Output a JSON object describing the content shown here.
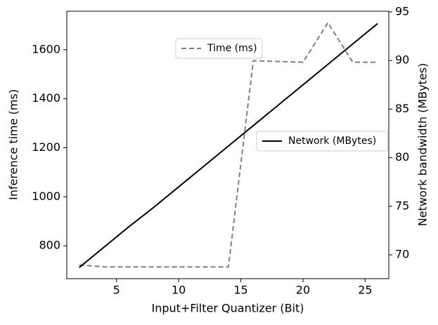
{
  "chart_data": {
    "type": "line",
    "x_label": "Input+Filter Quantizer (Bit)",
    "y_label": "Inference time (ms)",
    "y2_label": "Network bandwidth (MBytes)",
    "x": [
      2,
      4,
      6,
      8,
      10,
      12,
      14,
      16,
      18,
      20,
      22,
      24,
      26
    ],
    "series": [
      {
        "name": "Time (ms)",
        "color": "#808080",
        "dash": "dashed",
        "axis": "y",
        "values": [
          722,
          714,
          714,
          714,
          714,
          714,
          714,
          1555,
          1552,
          1549,
          1710,
          1549,
          1549
        ]
      },
      {
        "name": "Network (MBytes)",
        "color": "#000000",
        "dash": "solid",
        "axis": "y2",
        "values": [
          68.7,
          70.8,
          72.9,
          74.9,
          77.0,
          79.1,
          81.2,
          83.3,
          85.4,
          87.5,
          89.6,
          91.7,
          93.8
        ]
      }
    ],
    "xlim": [
      1.0,
      26.9
    ],
    "xticks": [
      5,
      10,
      15,
      20,
      25
    ],
    "ylim": [
      666,
      1757
    ],
    "yticks": [
      800,
      1000,
      1200,
      1400,
      1600
    ],
    "y2lim": [
      67.55,
      95.07
    ],
    "y2ticks": [
      70,
      75,
      80,
      85,
      90,
      95
    ]
  }
}
